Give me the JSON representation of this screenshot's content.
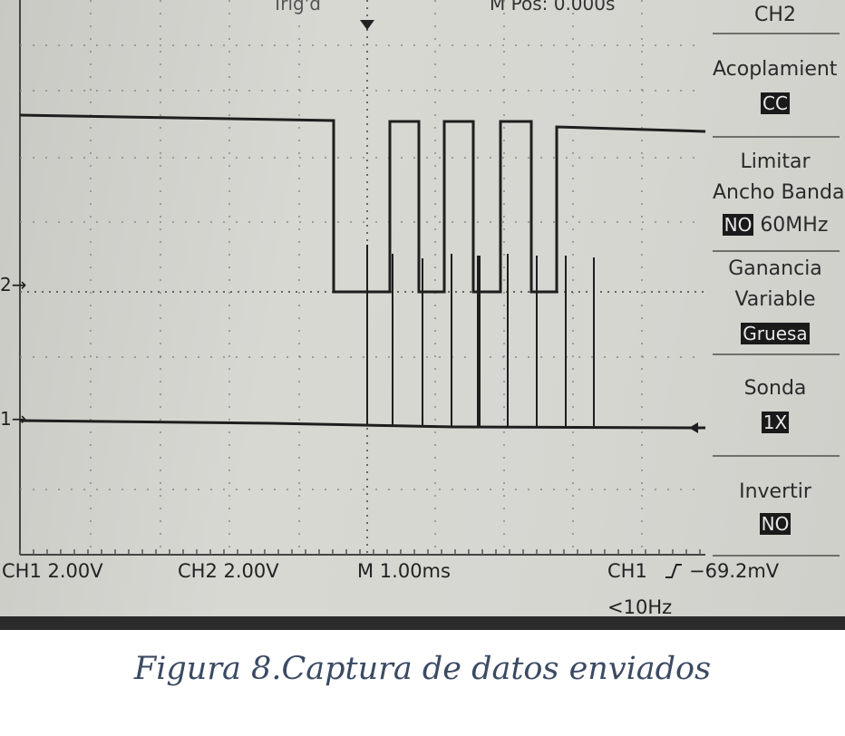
{
  "header": {
    "top_right_channel": "CH2",
    "m_pos": "M Pos: 0.000s",
    "trigger_label": "Trig'd"
  },
  "menu": {
    "acoplamiento_label": "Acoplamient",
    "acoplamiento_value": "CC",
    "limitar_label_1": "Limitar",
    "limitar_label_2": "Ancho Banda",
    "limitar_value": "NO",
    "limitar_suffix": "60MHz",
    "ganancia_label_1": "Ganancia",
    "ganancia_label_2": "Variable",
    "ganancia_value": "Gruesa",
    "sonda_label": "Sonda",
    "sonda_value": "1X",
    "invertir_label": "Invertir",
    "invertir_value": "NO"
  },
  "status": {
    "ch1_scale": "CH1  2.00V",
    "ch2_scale": "CH2  2.00V",
    "timebase": "M 1.00ms",
    "trigger_source": "CH1",
    "trigger_level": "−69.2mV",
    "frequency": "<10Hz"
  },
  "markers": {
    "ch1": "1→",
    "ch2": "2→"
  },
  "caption": "Figura 8.Captura de datos enviados",
  "colors": {
    "trace": "#1e1e1e",
    "grid": "#8a8a86",
    "screen": "#d6d6d1",
    "caption": "#3b4a63"
  }
}
